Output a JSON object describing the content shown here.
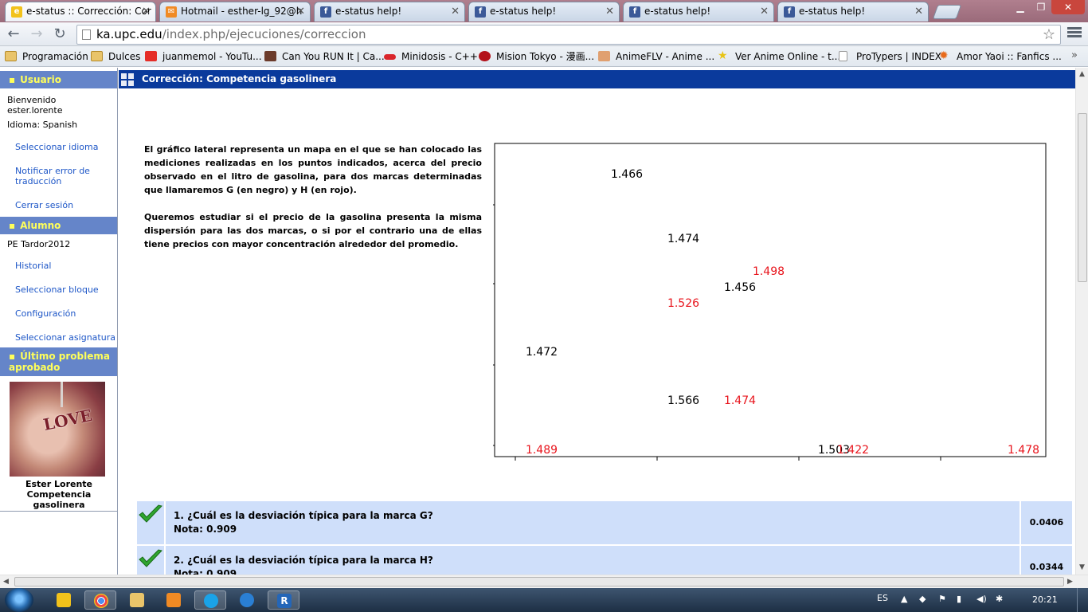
{
  "browser": {
    "tabs": [
      {
        "title": "e-status :: Corrección: Cor",
        "icon": "estatus-icon",
        "color": "#f2c21b",
        "active": true
      },
      {
        "title": "Hotmail - esther-lg_92@h",
        "icon": "hotmail-icon",
        "color": "#f08a24",
        "active": false
      },
      {
        "title": "e-status help!",
        "icon": "facebook-icon",
        "color": "#3b5998",
        "active": false
      },
      {
        "title": "e-status help!",
        "icon": "facebook-icon",
        "color": "#3b5998",
        "active": false
      },
      {
        "title": "e-status help!",
        "icon": "facebook-icon",
        "color": "#3b5998",
        "active": false
      },
      {
        "title": "e-status help!",
        "icon": "facebook-icon",
        "color": "#3b5998",
        "active": false
      }
    ],
    "address": {
      "host": "ka.upc.edu",
      "path": "/index.php/ejecuciones/correccion"
    },
    "bookmarks": [
      {
        "label": "Programación",
        "icon": "folder-icon"
      },
      {
        "label": "Dulces",
        "icon": "folder-icon"
      },
      {
        "label": "juanmemol - YouTu...",
        "icon": "youtube-icon"
      },
      {
        "label": "Can You RUN It | Ca...",
        "icon": "canyourunit-icon"
      },
      {
        "label": "Minidosis - C++",
        "icon": "pill-icon"
      },
      {
        "label": "Mision Tokyo - 漫画...",
        "icon": "misiontokyo-icon"
      },
      {
        "label": "AnimeFLV - Anime ...",
        "icon": "animeflv-icon"
      },
      {
        "label": "Ver Anime Online - t...",
        "icon": "star-icon"
      },
      {
        "label": "ProTypers | INDEX",
        "icon": "page-icon"
      },
      {
        "label": "Amor Yaoi :: Fanfics ...",
        "icon": "sun-icon"
      }
    ]
  },
  "sidebar": {
    "usuario": {
      "heading": "Usuario",
      "welcome": "Bienvenido",
      "username": "ester.lorente",
      "language": "Idioma: Spanish",
      "links": [
        "Seleccionar idioma",
        "Notificar error de traducción",
        "Cerrar sesión"
      ]
    },
    "alumno": {
      "heading": "Alumno",
      "group": "PE Tardor2012",
      "links": [
        "Historial",
        "Seleccionar bloque",
        "Configuración",
        "Seleccionar asignatura"
      ]
    },
    "ultimo": {
      "heading": "Último problema aprobado",
      "photo_text": "LOVE",
      "caption_name": "Ester Lorente",
      "caption_problem": "Competencia gasolinera"
    }
  },
  "main": {
    "title": "Corrección: Competencia gasolinera",
    "paragraph1": "El gráfico lateral representa un mapa en el que se han colocado las mediciones realizadas en los puntos indicados, acerca del precio observado en el litro de gasolina, para dos marcas determinadas que llamaremos G (en negro) y H (en rojo).",
    "paragraph2": "Queremos estudiar si el precio de la gasolina presenta la misma dispersión para las dos marcas, o si por el contrario una de ellas tiene precios con mayor concentración alrededor del promedio.",
    "questions": [
      {
        "text": "1. ¿Cuál es la desviación típica para la marca G?",
        "grade": "Nota: 0.909",
        "answer": "0.0406"
      },
      {
        "text": "2. ¿Cuál es la desviación típica para la marca H?",
        "grade": "Nota: 0.909",
        "answer": "0.0344"
      }
    ]
  },
  "chart_data": {
    "type": "scatter",
    "title": "",
    "xlabel": "",
    "ylabel": "",
    "colors": {
      "G": "#000000",
      "H": "#e8141c"
    },
    "points": [
      {
        "brand": "G",
        "label": "1.466",
        "col": 1,
        "row": 0
      },
      {
        "brand": "G",
        "label": "1.474",
        "col": 2,
        "row": 1
      },
      {
        "brand": "H",
        "label": "1.498",
        "col": 4,
        "row": 2
      },
      {
        "brand": "G",
        "label": "1.456",
        "col": 3,
        "row": 3
      },
      {
        "brand": "H",
        "label": "1.526",
        "col": 2,
        "row": 4
      },
      {
        "brand": "G",
        "label": "1.472",
        "col": 0,
        "row": 5
      },
      {
        "brand": "G",
        "label": "1.566",
        "col": 2,
        "row": 6
      },
      {
        "brand": "H",
        "label": "1.474",
        "col": 3,
        "row": 7
      },
      {
        "brand": "H",
        "label": "1.489",
        "col": 0,
        "row": 8
      },
      {
        "brand": "G",
        "label": "1.503",
        "col": 5,
        "row": 9
      },
      {
        "brand": "H",
        "label": "1.422",
        "col": 6,
        "row": 10
      },
      {
        "brand": "H",
        "label": "1.478",
        "col": 7,
        "row": 11
      }
    ]
  },
  "taskbar": {
    "lang": "ES",
    "time": "20:21",
    "apps": [
      "clock-icon",
      "chrome-icon",
      "explorer-icon",
      "media-player-icon",
      "skype-icon",
      "ie-icon",
      "r-icon"
    ]
  }
}
